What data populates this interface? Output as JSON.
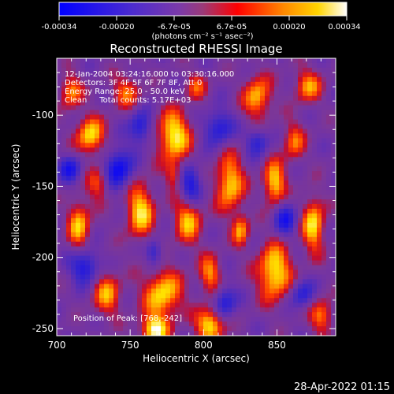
{
  "colorbar": {
    "tick_labels": [
      "-0.00034",
      "-0.00020",
      "-6.7e-05",
      "6.7e-05",
      "0.00020",
      "0.00034"
    ],
    "unit_label": "(photons cm⁻² s⁻¹ asec⁻²)",
    "colors": [
      "#0000ff",
      "#5b2ab0",
      "#7c3aa8",
      "#a03a6f",
      "#ff0000",
      "#ff8a00",
      "#ffd400",
      "#ffffff"
    ]
  },
  "title": "Reconstructed RHESSI Image",
  "info_lines": [
    "12-Jan-2004 03:24:16.000 to 03:30:16.000",
    "Detectors: 3F 4F 5F 6F 7F 8F, Att 0",
    "Energy Range: 25.0 - 50.0 keV",
    "Clean     Total counts: 5.17E+03"
  ],
  "peak_label": "Position of Peak: [768,-242]",
  "footer_timestamp": "28-Apr-2022 01:15",
  "chart_data": {
    "type": "heatmap",
    "title": "Reconstructed RHESSI Image",
    "xlabel": "Heliocentric X (arcsec)",
    "ylabel": "Heliocentric Y (arcsec)",
    "xlim": [
      700,
      890
    ],
    "ylim": [
      -255,
      -60
    ],
    "x_ticks": [
      700,
      750,
      800,
      850
    ],
    "y_ticks": [
      -100,
      -150,
      -200,
      -250
    ],
    "color_range": [
      -0.00034,
      0.00034
    ]
  }
}
